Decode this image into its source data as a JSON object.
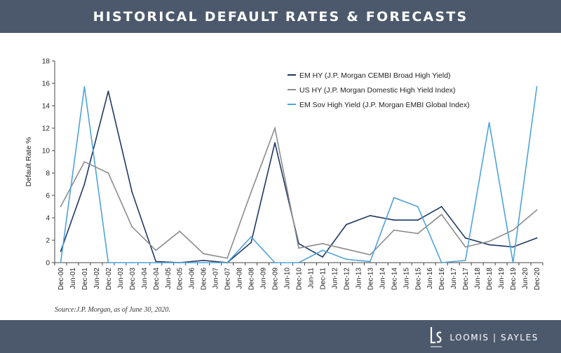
{
  "header": {
    "title": "HISTORICAL DEFAULT RATES & FORECASTS"
  },
  "footer": {
    "source": "Source:J.P. Morgan, as of June 30, 2020.",
    "logo_text": "LOOMIS | SAYLES"
  },
  "colors": {
    "header_bg": "#4c596d",
    "em_hy": "#1f3864",
    "us_hy": "#8c8c8c",
    "em_sov": "#4fa3d8"
  },
  "chart_data": {
    "type": "line",
    "title": "HISTORICAL DEFAULT RATES & FORECASTS",
    "ylabel": "Default Rate %",
    "xlabel": "",
    "ylim": [
      0,
      18
    ],
    "yticks": [
      0,
      2,
      4,
      6,
      8,
      10,
      12,
      14,
      16,
      18
    ],
    "grid": false,
    "legend_position": "top-right",
    "categories": [
      "Dec-00",
      "Jun-01",
      "Dec-01",
      "Jun-02",
      "Dec-02",
      "Jun-03",
      "Dec-03",
      "Jun-04",
      "Dec-04",
      "Jun-05",
      "Dec-05",
      "Jun-06",
      "Dec-06",
      "Jun-07",
      "Dec-07",
      "Jun-08",
      "Dec-08",
      "Jun-09",
      "Dec-09",
      "Jun-10",
      "Dec-10",
      "Jun-11",
      "Dec-11",
      "Jun-12",
      "Dec-12",
      "Jun-13",
      "Dec-13",
      "Jun-14",
      "Dec-14",
      "Jun-15",
      "Dec-15",
      "Jun-16",
      "Dec-16",
      "Jun-17",
      "Dec-17",
      "Jun-18",
      "Dec-18",
      "Jun-19",
      "Dec-19",
      "Jun-20",
      "Dec-20"
    ],
    "series": [
      {
        "name": "EM HY (J.P. Morgan CEMBI Broad High Yield)",
        "color": "#1f3864",
        "points": [
          [
            1,
            1.0
          ],
          [
            3,
            7.0
          ],
          [
            5,
            15.3
          ],
          [
            7,
            6.3
          ],
          [
            9,
            0.1
          ],
          [
            11,
            0.0
          ],
          [
            13,
            0.2
          ],
          [
            15,
            0.0
          ],
          [
            17,
            1.8
          ],
          [
            19,
            10.7
          ],
          [
            21,
            1.7
          ],
          [
            23,
            0.5
          ],
          [
            25,
            3.4
          ],
          [
            27,
            4.2
          ],
          [
            29,
            3.8
          ],
          [
            31,
            3.8
          ],
          [
            33,
            5.0
          ],
          [
            35,
            2.2
          ],
          [
            37,
            1.6
          ],
          [
            39,
            1.4
          ],
          [
            41,
            2.2
          ]
        ]
      },
      {
        "name": "US HY (J.P. Morgan Domestic High Yield Index)",
        "color": "#8c8c8c",
        "points": [
          [
            1,
            5.0
          ],
          [
            3,
            9.0
          ],
          [
            5,
            8.0
          ],
          [
            7,
            3.2
          ],
          [
            9,
            1.1
          ],
          [
            11,
            2.8
          ],
          [
            13,
            0.8
          ],
          [
            15,
            0.4
          ],
          [
            17,
            6.3
          ],
          [
            19,
            12.0
          ],
          [
            21,
            1.3
          ],
          [
            23,
            1.7
          ],
          [
            25,
            1.2
          ],
          [
            27,
            0.7
          ],
          [
            29,
            2.9
          ],
          [
            31,
            2.6
          ],
          [
            33,
            4.3
          ],
          [
            35,
            1.4
          ],
          [
            37,
            1.9
          ],
          [
            39,
            2.9
          ],
          [
            41,
            4.7
          ]
        ]
      },
      {
        "name": "EM Sov High Yield (J.P. Morgan EMBI Global Index)",
        "color": "#4fa3d8",
        "points": [
          [
            1,
            0.0
          ],
          [
            3,
            15.7
          ],
          [
            5,
            0.0
          ],
          [
            7,
            0.0
          ],
          [
            9,
            0.0
          ],
          [
            11,
            0.0
          ],
          [
            13,
            0.0
          ],
          [
            15,
            0.0
          ],
          [
            17,
            2.3
          ],
          [
            19,
            0.0
          ],
          [
            21,
            0.0
          ],
          [
            23,
            1.1
          ],
          [
            25,
            0.3
          ],
          [
            27,
            0.1
          ],
          [
            29,
            5.8
          ],
          [
            31,
            5.0
          ],
          [
            33,
            0.0
          ],
          [
            35,
            0.2
          ],
          [
            37,
            12.5
          ],
          [
            39,
            0.0
          ],
          [
            41,
            15.7
          ]
        ]
      }
    ]
  }
}
